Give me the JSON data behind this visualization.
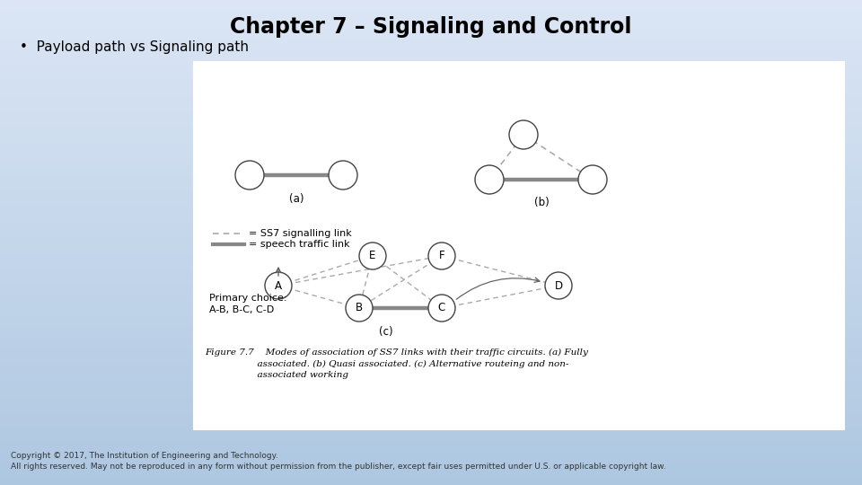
{
  "title": "Chapter 7 – Signaling and Control",
  "bullet": "•  Payload path vs Signaling path",
  "copyright_line1": "Copyright © 2017, The Institution of Engineering and Technology.",
  "copyright_line2": "All rights reserved. May not be reproduced in any form without permission from the publisher, except fair uses permitted under U.S. or applicable copyright law.",
  "figure_caption_line1": "Figure 7.7    Modes of association of SS7 links with their traffic circuits. (a) Fully",
  "figure_caption_line2": "                  associated. (b) Quasi associated. (c) Alternative routeing and non-",
  "figure_caption_line3": "                  associated working",
  "legend_ss7": "= SS7 signalling link",
  "legend_speech": "= speech traffic link",
  "primary_choice_line1": "Primary choice:",
  "primary_choice_line2": "A-B, B-C, C-D",
  "label_a": "(a)",
  "label_b": "(b)",
  "label_c": "(c)",
  "bg_color_top": "#c8d8e8",
  "bg_color_bottom": "#a0b8d0",
  "white_box_color": "white",
  "node_edge_color": "#444444",
  "dashed_color": "#aaaaaa",
  "solid_color": "#888888",
  "text_color": "#111111"
}
